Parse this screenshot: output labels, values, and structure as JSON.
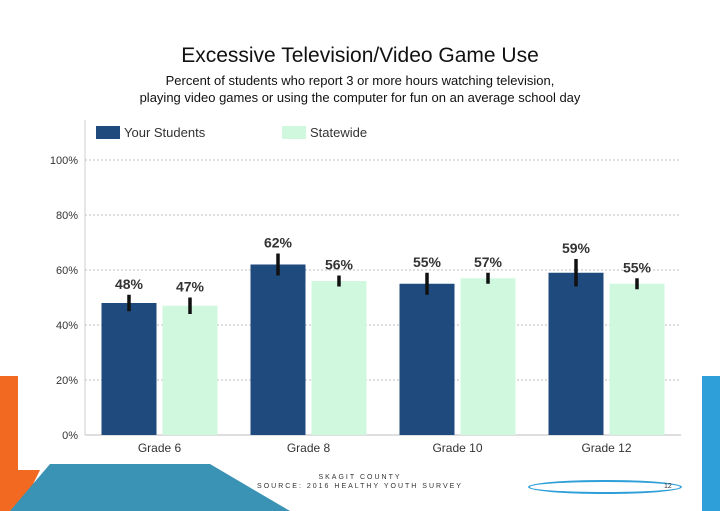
{
  "slide": {
    "title": "Excessive Television/Video Game Use",
    "subtitle_line1": "Percent of students who report 3 or more hours watching television,",
    "subtitle_line2": "playing video games or using the computer for fun on an average school day",
    "footer_line1": "SKAGIT COUNTY",
    "footer_line2": "SOURCE: 2016 HEALTHY YOUTH SURVEY",
    "page_number": "12"
  },
  "colors": {
    "your_students": "#1F4A7D",
    "statewide": "#CFF8DF",
    "error_bar": "#111111",
    "grid": "#BDBDBD",
    "accent_orange": "#F26A21",
    "accent_blue": "#2E9FD8",
    "accent_teal": "#3A93B4"
  },
  "chart_data": {
    "type": "bar",
    "categories": [
      "Grade 6",
      "Grade 8",
      "Grade 10",
      "Grade 12"
    ],
    "series": [
      {
        "name": "Your Students",
        "values": [
          48,
          62,
          55,
          59
        ],
        "labels": [
          "48%",
          "62%",
          "55%",
          "59%"
        ],
        "error_low": [
          45,
          58,
          51,
          54
        ],
        "error_high": [
          51,
          66,
          59,
          64
        ]
      },
      {
        "name": "Statewide",
        "values": [
          47,
          56,
          57,
          55
        ],
        "labels": [
          "47%",
          "56%",
          "57%",
          "55%"
        ],
        "error_low": [
          44,
          54,
          55,
          53
        ],
        "error_high": [
          50,
          58,
          59,
          57
        ]
      }
    ],
    "y_ticks": [
      "0%",
      "20%",
      "40%",
      "60%",
      "80%",
      "100%"
    ],
    "ylim": [
      0,
      100
    ],
    "grid": true,
    "legend": "top-left"
  }
}
